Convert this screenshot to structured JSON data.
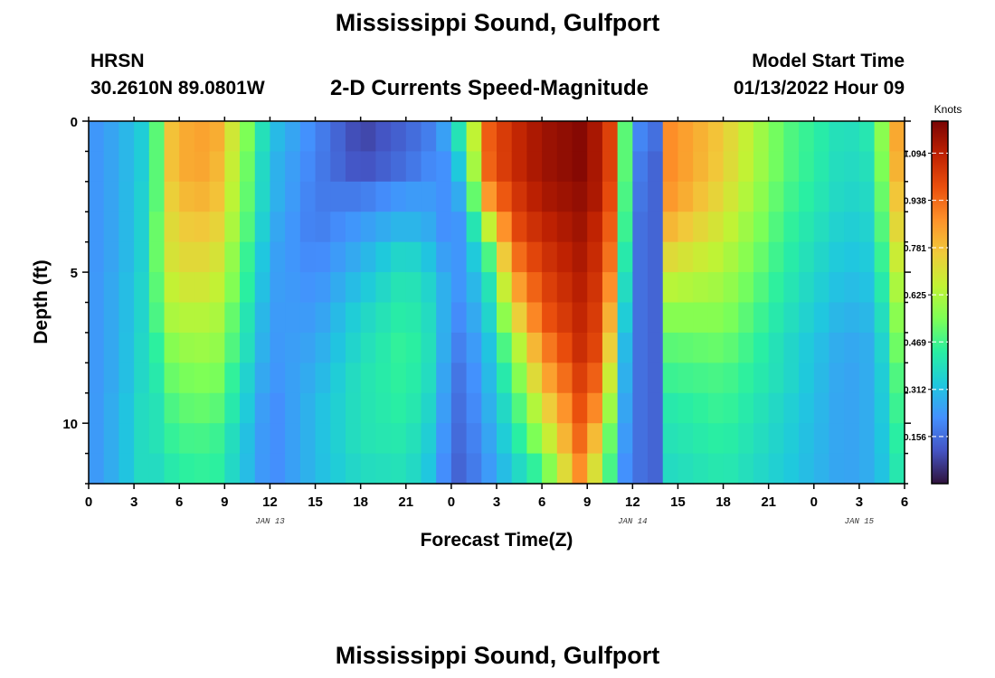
{
  "header": {
    "title": "Mississippi Sound, Gulfport",
    "station_id": "HRSN",
    "station_coords": "30.2610N  89.0801W",
    "chart_title": "2-D Currents Speed-Magnitude",
    "model_label": "Model Start Time",
    "model_time": "01/13/2022 Hour 09"
  },
  "footer": {
    "title": "Mississippi Sound, Gulfport"
  },
  "colors": {
    "colormap": [
      "#30123b",
      "#4454c4",
      "#4490fe",
      "#1fc8de",
      "#29efa2",
      "#7dff56",
      "#c1f334",
      "#f1ca3a",
      "#fe922a",
      "#ea4f0d",
      "#be2102",
      "#7a0403"
    ]
  },
  "chart_data": {
    "type": "heatmap",
    "title": "2-D Currents Speed-Magnitude",
    "xlabel": "Forecast Time(Z)",
    "ylabel": "Depth (ft)",
    "colorbar_label": "Knots",
    "xlim": [
      0,
      54
    ],
    "ylim": [
      0,
      12
    ],
    "x_ticks": [
      0,
      3,
      6,
      9,
      12,
      15,
      18,
      21,
      24,
      27,
      30,
      33,
      36,
      39,
      42,
      45,
      48,
      51,
      54
    ],
    "x_tick_labels": [
      "0",
      "3",
      "6",
      "9",
      "12",
      "15",
      "18",
      "21",
      "0",
      "3",
      "6",
      "9",
      "12",
      "15",
      "18",
      "21",
      "0",
      "3",
      "6"
    ],
    "date_labels": [
      {
        "text": "JAN 13",
        "x": 12
      },
      {
        "text": "JAN 14",
        "x": 36
      },
      {
        "text": "JAN 15",
        "x": 51
      }
    ],
    "y_ticks": [
      0,
      5,
      10
    ],
    "y_tick_labels": [
      "0",
      "5",
      "10"
    ],
    "colorbar_ticks": [
      0.156,
      0.312,
      0.469,
      0.625,
      0.781,
      0.938,
      1.094
    ],
    "colorbar_tick_labels": [
      "0.156",
      "0.312",
      "0.469",
      "0.625",
      "0.781",
      "0.938",
      "1.094"
    ],
    "value_range": [
      0,
      1.2
    ],
    "depths": [
      0,
      1,
      2,
      3,
      4,
      5,
      6,
      7,
      8,
      9,
      10,
      11,
      12
    ],
    "profile_times": [
      0,
      2,
      3.5,
      4.5,
      5.5,
      7,
      8.5,
      10,
      12,
      15,
      18,
      21,
      23,
      24,
      25,
      26.5,
      28,
      30,
      32.5,
      34,
      34.7,
      35.5,
      36.5,
      37.5,
      38.5,
      42,
      46,
      50,
      52,
      53.3,
      54
    ],
    "speed_profiles": [
      [
        0.22,
        0.22,
        0.22,
        0.22,
        0.22,
        0.22,
        0.22,
        0.22,
        0.22,
        0.22,
        0.22,
        0.22,
        0.22
      ],
      [
        0.27,
        0.27,
        0.27,
        0.27,
        0.27,
        0.28,
        0.28,
        0.28,
        0.28,
        0.29,
        0.29,
        0.29,
        0.29
      ],
      [
        0.34,
        0.34,
        0.35,
        0.35,
        0.35,
        0.36,
        0.36,
        0.37,
        0.37,
        0.38,
        0.38,
        0.38,
        0.38
      ],
      [
        0.5,
        0.5,
        0.5,
        0.52,
        0.52,
        0.5,
        0.48,
        0.44,
        0.42,
        0.4,
        0.4,
        0.38,
        0.38
      ],
      [
        0.78,
        0.78,
        0.75,
        0.72,
        0.7,
        0.66,
        0.62,
        0.56,
        0.52,
        0.48,
        0.45,
        0.42,
        0.4
      ],
      [
        0.85,
        0.85,
        0.82,
        0.78,
        0.74,
        0.7,
        0.64,
        0.6,
        0.55,
        0.52,
        0.48,
        0.45,
        0.42
      ],
      [
        0.82,
        0.8,
        0.78,
        0.74,
        0.7,
        0.66,
        0.62,
        0.58,
        0.54,
        0.5,
        0.46,
        0.44,
        0.42
      ],
      [
        0.62,
        0.6,
        0.58,
        0.56,
        0.52,
        0.5,
        0.46,
        0.44,
        0.4,
        0.38,
        0.35,
        0.34,
        0.32
      ],
      [
        0.32,
        0.3,
        0.3,
        0.28,
        0.26,
        0.25,
        0.24,
        0.23,
        0.22,
        0.2,
        0.2,
        0.2,
        0.2
      ],
      [
        0.2,
        0.19,
        0.18,
        0.18,
        0.2,
        0.22,
        0.24,
        0.26,
        0.28,
        0.3,
        0.3,
        0.3,
        0.3
      ],
      [
        0.08,
        0.1,
        0.18,
        0.24,
        0.28,
        0.32,
        0.36,
        0.38,
        0.4,
        0.4,
        0.4,
        0.38,
        0.37
      ],
      [
        0.14,
        0.16,
        0.24,
        0.3,
        0.38,
        0.42,
        0.44,
        0.46,
        0.45,
        0.44,
        0.42,
        0.4,
        0.38
      ],
      [
        0.2,
        0.22,
        0.24,
        0.26,
        0.3,
        0.34,
        0.36,
        0.37,
        0.36,
        0.34,
        0.32,
        0.3,
        0.28
      ],
      [
        0.3,
        0.22,
        0.2,
        0.18,
        0.2,
        0.22,
        0.2,
        0.18,
        0.16,
        0.15,
        0.14,
        0.13,
        0.12
      ],
      [
        0.5,
        0.44,
        0.34,
        0.28,
        0.26,
        0.24,
        0.22,
        0.2,
        0.18,
        0.17,
        0.16,
        0.15,
        0.14
      ],
      [
        0.96,
        0.95,
        0.86,
        0.66,
        0.48,
        0.4,
        0.36,
        0.32,
        0.3,
        0.28,
        0.26,
        0.24,
        0.24
      ],
      [
        1.06,
        1.06,
        1.02,
        0.98,
        0.9,
        0.8,
        0.68,
        0.56,
        0.48,
        0.42,
        0.38,
        0.34,
        0.3
      ],
      [
        1.14,
        1.14,
        1.12,
        1.08,
        1.04,
        1.0,
        0.96,
        0.88,
        0.8,
        0.7,
        0.6,
        0.48,
        0.4
      ],
      [
        1.18,
        1.18,
        1.16,
        1.14,
        1.12,
        1.1,
        1.08,
        1.06,
        1.02,
        0.98,
        0.94,
        0.88,
        0.78
      ],
      [
        1.1,
        1.1,
        1.1,
        1.06,
        1.04,
        1.02,
        1.0,
        0.98,
        0.92,
        0.84,
        0.72,
        0.62,
        0.55
      ],
      [
        0.98,
        0.98,
        0.95,
        0.92,
        0.88,
        0.82,
        0.74,
        0.66,
        0.58,
        0.5,
        0.44,
        0.42,
        0.4
      ],
      [
        0.5,
        0.5,
        0.48,
        0.46,
        0.42,
        0.38,
        0.34,
        0.3,
        0.28,
        0.26,
        0.24,
        0.22,
        0.22
      ],
      [
        0.2,
        0.18,
        0.17,
        0.16,
        0.16,
        0.16,
        0.16,
        0.16,
        0.16,
        0.16,
        0.16,
        0.16,
        0.16
      ],
      [
        0.16,
        0.14,
        0.14,
        0.14,
        0.14,
        0.14,
        0.14,
        0.14,
        0.14,
        0.14,
        0.14,
        0.14,
        0.14
      ],
      [
        0.88,
        0.88,
        0.86,
        0.8,
        0.72,
        0.64,
        0.56,
        0.5,
        0.46,
        0.42,
        0.4,
        0.38,
        0.36
      ],
      [
        0.76,
        0.75,
        0.72,
        0.68,
        0.64,
        0.6,
        0.56,
        0.52,
        0.48,
        0.46,
        0.44,
        0.42,
        0.4
      ],
      [
        0.5,
        0.5,
        0.48,
        0.46,
        0.44,
        0.42,
        0.4,
        0.38,
        0.38,
        0.36,
        0.35,
        0.34,
        0.33
      ],
      [
        0.38,
        0.37,
        0.36,
        0.34,
        0.32,
        0.3,
        0.28,
        0.26,
        0.25,
        0.25,
        0.25,
        0.25,
        0.25
      ],
      [
        0.42,
        0.4,
        0.38,
        0.36,
        0.34,
        0.32,
        0.3,
        0.28,
        0.28,
        0.28,
        0.28,
        0.28,
        0.28
      ],
      [
        0.8,
        0.78,
        0.74,
        0.7,
        0.64,
        0.58,
        0.52,
        0.48,
        0.44,
        0.42,
        0.4,
        0.38,
        0.36
      ],
      [
        0.9,
        0.88,
        0.85,
        0.8,
        0.76,
        0.72,
        0.68,
        0.64,
        0.6,
        0.56,
        0.52,
        0.5,
        0.48
      ]
    ]
  }
}
